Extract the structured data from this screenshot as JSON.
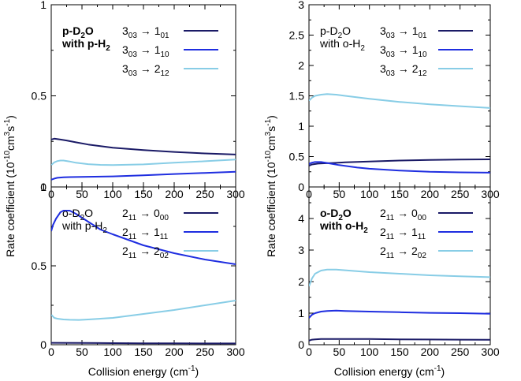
{
  "colors": {
    "dark_navy": "#1a1a66",
    "blue": "#1f2ee0",
    "light_blue": "#88cde6"
  },
  "chart_data": [
    {
      "type": "line",
      "panel": "top-left",
      "label": {
        "line1_main": "p-D",
        "line1_sub": "2",
        "line1_tail": "O",
        "line2_main": "with p-H",
        "line2_sub": "2"
      },
      "label_bold": true,
      "xlim": [
        0,
        300
      ],
      "ylim": [
        0,
        1
      ],
      "xticks": [
        "0",
        "50",
        "100",
        "150",
        "200",
        "250",
        "300"
      ],
      "yticks": [
        {
          "v": 0,
          "t": "0"
        },
        {
          "v": 0.5,
          "t": "0.5"
        },
        {
          "v": 1,
          "t": "1"
        }
      ],
      "series": [
        {
          "legend": {
            "up": "3",
            "up_sub": "03",
            "low": "1",
            "low_sub": "01"
          },
          "color": "dark_navy",
          "x": [
            0,
            5,
            15,
            25,
            40,
            60,
            80,
            100,
            150,
            200,
            250,
            300
          ],
          "y": [
            0.26,
            0.265,
            0.26,
            0.255,
            0.245,
            0.233,
            0.224,
            0.215,
            0.202,
            0.192,
            0.184,
            0.178
          ]
        },
        {
          "legend": {
            "up": "3",
            "up_sub": "03",
            "low": "1",
            "low_sub": "10"
          },
          "color": "blue",
          "x": [
            0,
            5,
            10,
            20,
            30,
            50,
            100,
            150,
            200,
            250,
            300
          ],
          "y": [
            0.04,
            0.046,
            0.05,
            0.053,
            0.054,
            0.055,
            0.058,
            0.064,
            0.071,
            0.077,
            0.083
          ]
        },
        {
          "legend": {
            "up": "3",
            "up_sub": "03",
            "low": "2",
            "low_sub": "12"
          },
          "color": "light_blue",
          "x": [
            0,
            5,
            10,
            15,
            20,
            30,
            40,
            60,
            80,
            100,
            150,
            200,
            250,
            300
          ],
          "y": [
            0.12,
            0.135,
            0.142,
            0.145,
            0.145,
            0.14,
            0.133,
            0.125,
            0.121,
            0.12,
            0.124,
            0.133,
            0.141,
            0.15
          ]
        }
      ]
    },
    {
      "type": "line",
      "panel": "top-right",
      "label": {
        "line1_main": "p-D",
        "line1_sub": "2",
        "line1_tail": "O",
        "line2_main": "with o-H",
        "line2_sub": "2"
      },
      "label_bold": false,
      "xlim": [
        0,
        300
      ],
      "ylim": [
        0,
        3
      ],
      "xticks": [
        "0",
        "50",
        "100",
        "150",
        "200",
        "250",
        "300"
      ],
      "yticks": [
        {
          "v": 0,
          "t": "0"
        },
        {
          "v": 0.5,
          "t": "0.5"
        },
        {
          "v": 1,
          "t": "1"
        },
        {
          "v": 1.5,
          "t": "1.5"
        },
        {
          "v": 2,
          "t": "2"
        },
        {
          "v": 2.5,
          "t": "2.5"
        },
        {
          "v": 3,
          "t": "3"
        }
      ],
      "series": [
        {
          "legend": {
            "up": "3",
            "up_sub": "03",
            "low": "1",
            "low_sub": "01"
          },
          "color": "dark_navy",
          "x": [
            0,
            5,
            15,
            25,
            40,
            60,
            100,
            150,
            200,
            250,
            300
          ],
          "y": [
            0.35,
            0.37,
            0.385,
            0.39,
            0.395,
            0.405,
            0.42,
            0.435,
            0.445,
            0.45,
            0.455
          ]
        },
        {
          "legend": {
            "up": "3",
            "up_sub": "03",
            "low": "1",
            "low_sub": "10"
          },
          "color": "blue",
          "x": [
            0,
            5,
            10,
            20,
            30,
            50,
            80,
            100,
            150,
            200,
            250,
            300
          ],
          "y": [
            0.38,
            0.4,
            0.41,
            0.41,
            0.395,
            0.36,
            0.32,
            0.3,
            0.27,
            0.25,
            0.24,
            0.235
          ]
        },
        {
          "legend": {
            "up": "3",
            "up_sub": "03",
            "low": "2",
            "low_sub": "12"
          },
          "color": "light_blue",
          "x": [
            0,
            5,
            10,
            20,
            30,
            45,
            60,
            100,
            150,
            200,
            250,
            300
          ],
          "y": [
            1.42,
            1.47,
            1.5,
            1.52,
            1.53,
            1.52,
            1.5,
            1.45,
            1.4,
            1.36,
            1.33,
            1.3
          ]
        }
      ]
    },
    {
      "type": "line",
      "panel": "bottom-left",
      "label": {
        "line1_main": "o-D",
        "line1_sub": "2",
        "line1_tail": "O",
        "line2_main": "with p-H",
        "line2_sub": "2"
      },
      "label_bold": false,
      "xlim": [
        0,
        300
      ],
      "ylim": [
        0,
        1
      ],
      "xticks": [
        "0",
        "50",
        "100",
        "150",
        "200",
        "250",
        "300"
      ],
      "yticks": [
        {
          "v": 0,
          "t": "0"
        },
        {
          "v": 0.5,
          "t": "0.5"
        },
        {
          "v": 1,
          "t": "1"
        }
      ],
      "series": [
        {
          "legend": {
            "up": "2",
            "up_sub": "11",
            "low": "0",
            "low_sub": "00"
          },
          "color": "dark_navy",
          "x": [
            0,
            50,
            100,
            150,
            200,
            250,
            300
          ],
          "y": [
            0.012,
            0.011,
            0.01,
            0.009,
            0.009,
            0.008,
            0.008
          ]
        },
        {
          "legend": {
            "up": "2",
            "up_sub": "11",
            "low": "1",
            "low_sub": "11"
          },
          "color": "blue",
          "x": [
            0,
            3,
            8,
            15,
            20,
            30,
            40,
            60,
            80,
            100,
            150,
            200,
            250,
            300
          ],
          "y": [
            0.72,
            0.76,
            0.8,
            0.84,
            0.85,
            0.85,
            0.83,
            0.78,
            0.73,
            0.7,
            0.63,
            0.58,
            0.54,
            0.51
          ]
        },
        {
          "legend": {
            "up": "2",
            "up_sub": "11",
            "low": "2",
            "low_sub": "02"
          },
          "color": "light_blue",
          "x": [
            0,
            5,
            10,
            20,
            30,
            45,
            60,
            100,
            150,
            200,
            250,
            300
          ],
          "y": [
            0.19,
            0.17,
            0.165,
            0.16,
            0.158,
            0.157,
            0.16,
            0.17,
            0.195,
            0.22,
            0.25,
            0.28
          ]
        }
      ]
    },
    {
      "type": "line",
      "panel": "bottom-right",
      "label": {
        "line1_main": "o-D",
        "line1_sub": "2",
        "line1_tail": "O",
        "line2_main": "with o-H",
        "line2_sub": "2"
      },
      "label_bold": true,
      "xlim": [
        0,
        300
      ],
      "ylim": [
        0,
        5
      ],
      "xticks": [
        "0",
        "50",
        "100",
        "150",
        "200",
        "250",
        "300"
      ],
      "yticks": [
        {
          "v": 0,
          "t": "0"
        },
        {
          "v": 1,
          "t": "1"
        },
        {
          "v": 2,
          "t": "2"
        },
        {
          "v": 3,
          "t": "3"
        },
        {
          "v": 4,
          "t": "4"
        }
      ],
      "series": [
        {
          "legend": {
            "up": "2",
            "up_sub": "11",
            "low": "0",
            "low_sub": "00"
          },
          "color": "dark_navy",
          "x": [
            0,
            5,
            10,
            20,
            40,
            60,
            100,
            150,
            200,
            250,
            300
          ],
          "y": [
            0.13,
            0.16,
            0.17,
            0.18,
            0.18,
            0.18,
            0.18,
            0.17,
            0.165,
            0.16,
            0.155
          ]
        },
        {
          "legend": {
            "up": "2",
            "up_sub": "11",
            "low": "1",
            "low_sub": "11"
          },
          "color": "blue",
          "x": [
            0,
            5,
            10,
            20,
            30,
            45,
            60,
            100,
            150,
            200,
            250,
            300
          ],
          "y": [
            0.85,
            0.95,
            1.0,
            1.05,
            1.07,
            1.08,
            1.07,
            1.05,
            1.03,
            1.01,
            1.0,
            0.98
          ]
        },
        {
          "legend": {
            "up": "2",
            "up_sub": "11",
            "low": "2",
            "low_sub": "02"
          },
          "color": "light_blue",
          "x": [
            0,
            5,
            10,
            20,
            30,
            45,
            60,
            100,
            150,
            200,
            250,
            300
          ],
          "y": [
            1.85,
            2.1,
            2.25,
            2.35,
            2.38,
            2.38,
            2.36,
            2.3,
            2.25,
            2.2,
            2.17,
            2.14
          ]
        }
      ]
    }
  ],
  "axes": {
    "ylabel_main": "Rate coefficient (10",
    "ylabel_exp1": "-10",
    "ylabel_mid": "cm",
    "ylabel_exp2": "3",
    "ylabel_s": "s",
    "ylabel_exp3": "-1",
    "ylabel_tail": ")",
    "xlabel_main": "Collision energy (cm",
    "xlabel_exp": "-1",
    "xlabel_tail": ")",
    "arrow": "→"
  }
}
